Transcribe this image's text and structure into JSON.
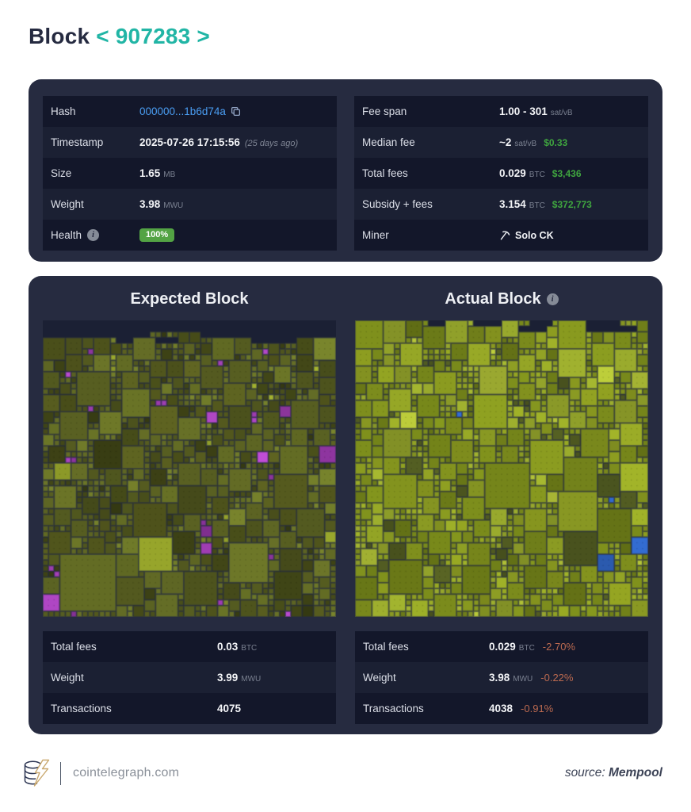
{
  "header": {
    "title": "Block",
    "prev_arrow": "<",
    "block_number": "907283",
    "next_arrow": ">"
  },
  "summary": {
    "left": [
      {
        "label": "Hash",
        "value": "000000...1b6d74a"
      },
      {
        "label": "Timestamp",
        "value": "2025-07-26 17:15:56",
        "ago": "(25 days ago)"
      },
      {
        "label": "Size",
        "value": "1.65",
        "unit": "MB"
      },
      {
        "label": "Weight",
        "value": "3.98",
        "unit": "MWU"
      },
      {
        "label": "Health",
        "badge": "100%"
      }
    ],
    "right": [
      {
        "label": "Fee span",
        "value": "1.00 - 301",
        "unit": "sat/vB"
      },
      {
        "label": "Median fee",
        "value": "~2",
        "unit": "sat/vB",
        "fiat": "$0.33"
      },
      {
        "label": "Total fees",
        "value": "0.029",
        "unit": "BTC",
        "fiat": "$3,436"
      },
      {
        "label": "Subsidy + fees",
        "value": "3.154",
        "unit": "BTC",
        "fiat": "$372,773"
      },
      {
        "label": "Miner",
        "value": "Solo CK"
      }
    ]
  },
  "comparison": {
    "expected": {
      "heading": "Expected Block",
      "stats": [
        {
          "label": "Total fees",
          "value": "0.03",
          "unit": "BTC"
        },
        {
          "label": "Weight",
          "value": "3.99",
          "unit": "MWU"
        },
        {
          "label": "Transactions",
          "value": "4075"
        }
      ]
    },
    "actual": {
      "heading": "Actual Block",
      "stats": [
        {
          "label": "Total fees",
          "value": "0.029",
          "unit": "BTC",
          "delta": "-2.70%"
        },
        {
          "label": "Weight",
          "value": "3.98",
          "unit": "MWU",
          "delta": "-0.22%"
        },
        {
          "label": "Transactions",
          "value": "4038",
          "delta": "-0.91%"
        }
      ]
    }
  },
  "footer": {
    "brand": "cointelegraph.com",
    "source_prefix": "source:",
    "source_name": "Mempool"
  },
  "colors": {
    "accent_teal": "#21b5a5",
    "card_bg": "#262b40",
    "row_dark": "#13172a",
    "row_light": "#1b2033",
    "link_blue": "#4a9df2",
    "fiat_green": "#3fa53f",
    "health_green": "#53a344",
    "delta_salmon": "#bc6a50"
  },
  "visualization": {
    "background": "#1b2034",
    "expected": {
      "seed": 1337,
      "cols": 52,
      "rows": 52,
      "base_colors": [
        "#4d531d",
        "#575e21",
        "#424717",
        "#5f6724",
        "#6b7527",
        "#555a1e"
      ],
      "dark_color": "#3a3f14",
      "dark_prob": 0.06,
      "bright_color": "#9aa82c",
      "bright_prob": 0.02,
      "accent_colors": [
        "#9d3cae",
        "#a944bd",
        "#8f35a0"
      ],
      "accent_prob": 0.02,
      "accent_max": 8,
      "top_skip": [
        0.97,
        0.95,
        0.88,
        0.45
      ],
      "sizes": [
        1,
        2,
        3,
        4,
        5,
        6,
        8,
        10,
        14
      ],
      "weights": [
        0.56,
        0.2,
        0.09,
        0.05,
        0.035,
        0.025,
        0.02,
        0.012,
        0.006
      ]
    },
    "actual": {
      "seed": 99,
      "cols": 52,
      "rows": 52,
      "base_colors": [
        "#76861a",
        "#7e8e1d",
        "#87961f",
        "#8e9e24",
        "#6d7c18",
        "#93a32b"
      ],
      "dark_color": "#4e5820",
      "dark_prob": 0.05,
      "bright_color": "#a8b734",
      "bright_prob": 0.03,
      "accent_colors": [
        "#3a6cc8",
        "#2f63c0"
      ],
      "accent_prob": 0.007,
      "accent_max": 3,
      "top_skip": [
        0.45,
        0.25,
        0.08
      ],
      "sizes": [
        1,
        2,
        3,
        4,
        5,
        6,
        8,
        10,
        14
      ],
      "weights": [
        0.54,
        0.2,
        0.1,
        0.055,
        0.04,
        0.025,
        0.02,
        0.012,
        0.008
      ]
    }
  }
}
